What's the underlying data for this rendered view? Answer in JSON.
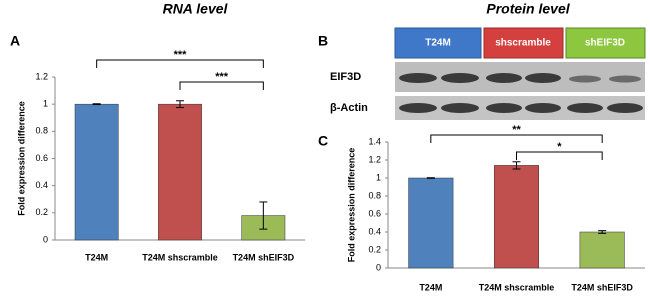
{
  "panels": {
    "a": "A",
    "b": "B",
    "c": "C"
  },
  "titles": {
    "left": "RNA level",
    "right": "Protein level"
  },
  "blot": {
    "lanes": [
      "T24M",
      "shscramble",
      "shEIF3D"
    ],
    "rows": [
      "EIF3D",
      "β-Actin"
    ]
  },
  "chart_data": [
    {
      "type": "bar",
      "ylabel": "Fold expression difference",
      "categories": [
        "T24M",
        "T24M shscramble",
        "T24M shEIF3D"
      ],
      "values": [
        1,
        1,
        0.18
      ],
      "errors": [
        0.003,
        0.025,
        0.1
      ],
      "colors": [
        "#4f81bd",
        "#c0504d",
        "#9bbb59"
      ],
      "ylim": [
        0,
        1.2
      ],
      "yticks": [
        0,
        0.2,
        0.4,
        0.6,
        0.8,
        1,
        1.2
      ],
      "annotations": [
        "***",
        "***"
      ]
    },
    {
      "type": "bar",
      "ylabel": "Fold expression difference",
      "categories": [
        "T24M",
        "T24M shscramble",
        "T24M shEIF3D"
      ],
      "values": [
        1,
        1.14,
        0.4
      ],
      "errors": [
        0.003,
        0.04,
        0.015
      ],
      "colors": [
        "#4f81bd",
        "#c0504d",
        "#9bbb59"
      ],
      "ylim": [
        0,
        1.4
      ],
      "yticks": [
        0,
        0.2,
        0.4,
        0.6,
        0.8,
        1,
        1.2,
        1.4
      ],
      "annotations": [
        "**",
        "*"
      ]
    }
  ]
}
